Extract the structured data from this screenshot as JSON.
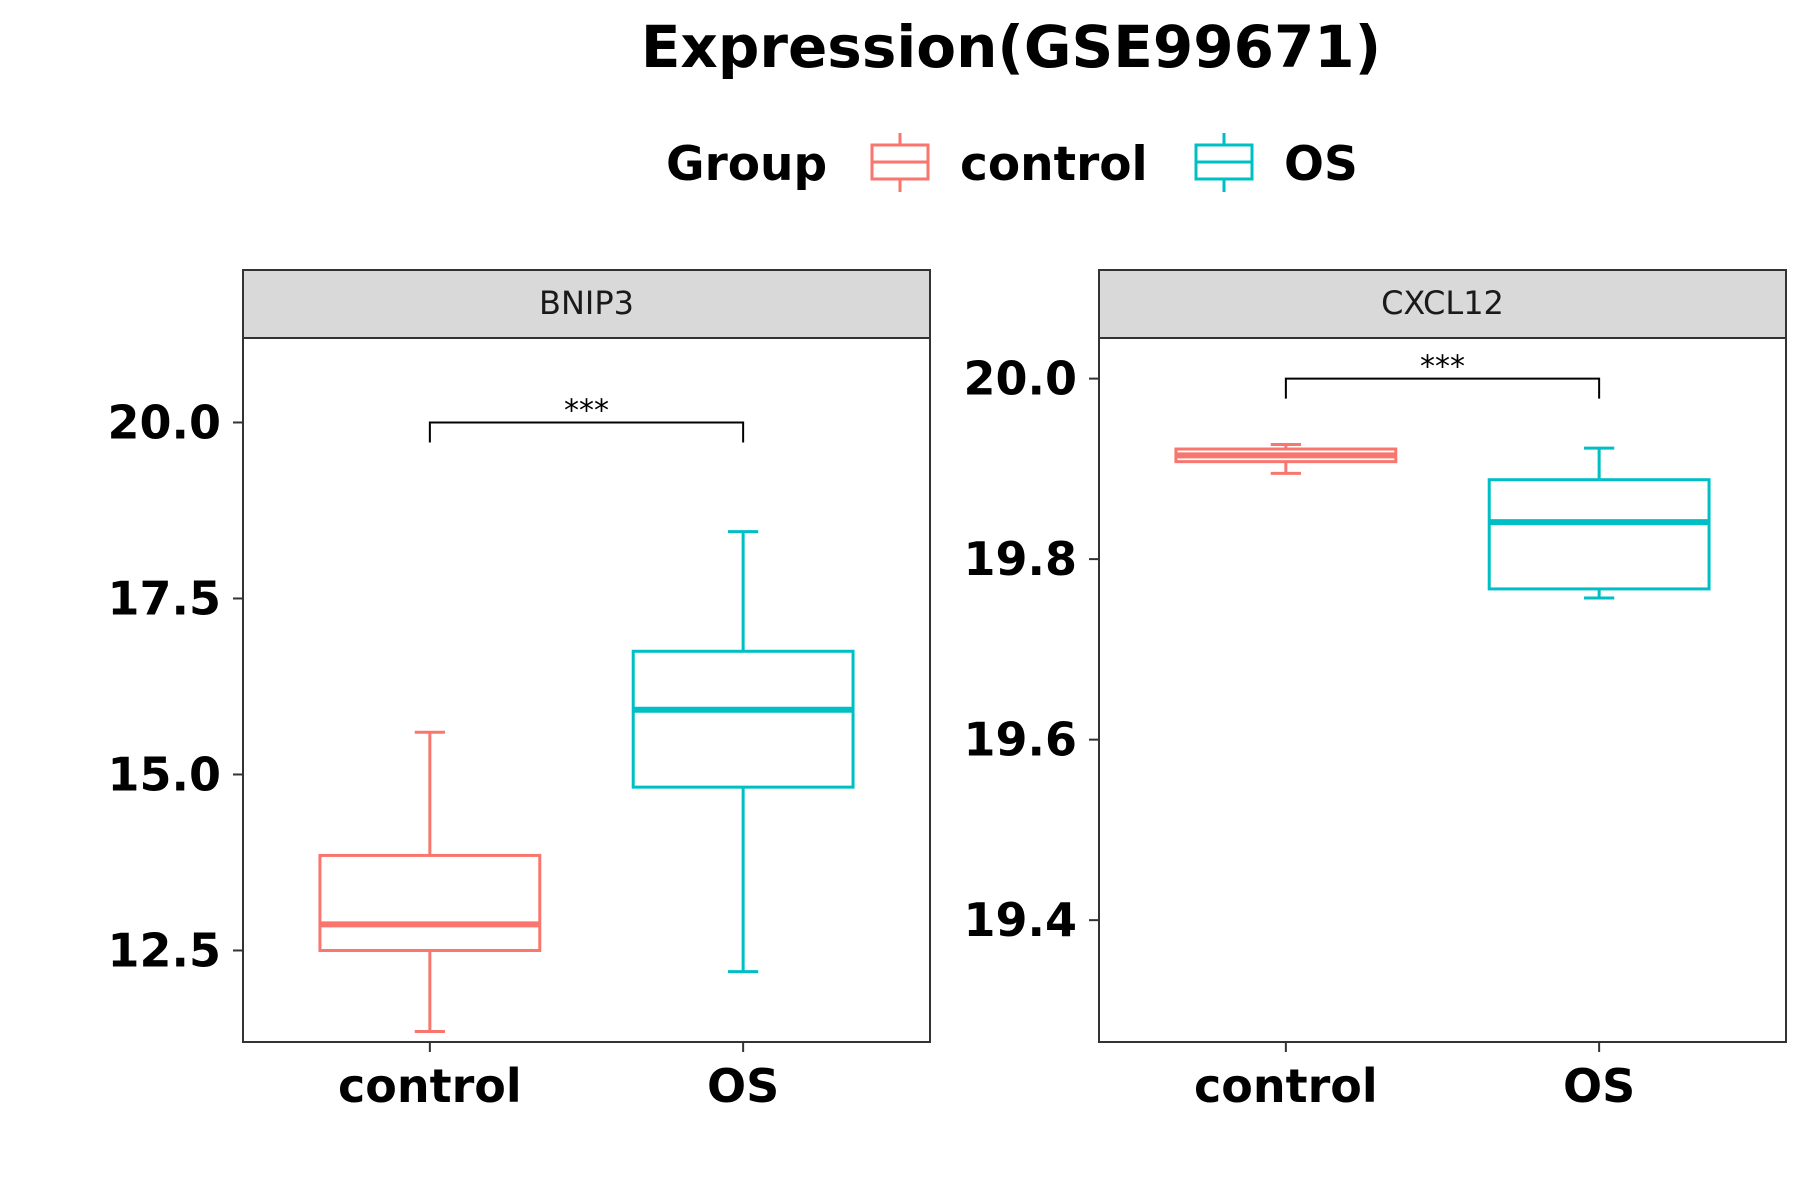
{
  "chart_data": {
    "type": "boxplot",
    "title": "Expression(GSE99671)",
    "legend": {
      "title": "Group",
      "position": "top",
      "entries": [
        {
          "label": "control",
          "color": "#F8766D"
        },
        {
          "label": "OS",
          "color": "#00BFC4"
        }
      ]
    },
    "categories": [
      "control",
      "OS"
    ],
    "grid": false,
    "panels": [
      {
        "strip_label": "BNIP3",
        "ylim": [
          11.2,
          21.2
        ],
        "y_ticks": [
          12.5,
          15.0,
          17.5,
          20.0
        ],
        "y_tick_labels": [
          "12.5",
          "15.0",
          "17.5",
          "20.0"
        ],
        "boxes": [
          {
            "group": "control",
            "whisker_low": 11.35,
            "q1": 12.5,
            "median": 12.87,
            "q3": 13.85,
            "whisker_high": 15.6
          },
          {
            "group": "OS",
            "whisker_low": 12.2,
            "q1": 14.82,
            "median": 15.92,
            "q3": 16.75,
            "whisker_high": 18.45
          }
        ],
        "significance": {
          "from": "control",
          "to": "OS",
          "y": 20.0,
          "label": "***"
        }
      },
      {
        "strip_label": "CXCL12",
        "ylim": [
          19.265,
          20.045
        ],
        "y_ticks": [
          19.4,
          19.6,
          19.8,
          20.0
        ],
        "y_tick_labels": [
          "19.4",
          "19.6",
          "19.8",
          "20.0"
        ],
        "boxes": [
          {
            "group": "control",
            "whisker_low": 19.895,
            "q1": 19.908,
            "median": 19.915,
            "q3": 19.922,
            "whisker_high": 19.927
          },
          {
            "group": "OS",
            "whisker_low": 19.757,
            "q1": 19.767,
            "median": 19.841,
            "q3": 19.888,
            "whisker_high": 19.923
          }
        ],
        "significance": {
          "from": "control",
          "to": "OS",
          "y": 20.0,
          "label": "***"
        }
      }
    ]
  }
}
